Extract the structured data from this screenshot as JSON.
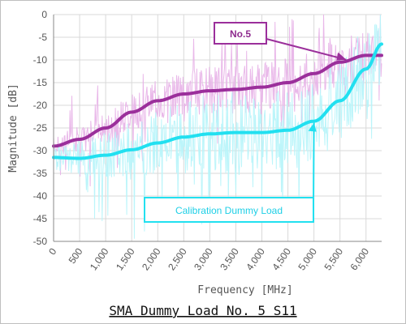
{
  "chart_data": {
    "type": "line",
    "title": "SMA Dummy Load No. 5 S11",
    "xlabel": "Frequency [MHz]",
    "ylabel": "Magnitude [dB]",
    "xlim": [
      0,
      6300
    ],
    "ylim": [
      -50,
      0
    ],
    "x_ticks": [
      "0",
      "500",
      "1,000",
      "1,500",
      "2,000",
      "2,500",
      "3,000",
      "3,500",
      "4,000",
      "4,500",
      "5,000",
      "5,500",
      "6,000"
    ],
    "y_ticks": [
      "0",
      "-5",
      "-10",
      "-15",
      "-20",
      "-25",
      "-30",
      "-35",
      "-40",
      "-45",
      "-50"
    ],
    "grid": true,
    "legend": "none",
    "series": [
      {
        "name": "No.5",
        "color": "#9b2f9b",
        "raw_color": "#e8b4e8",
        "x": [
          0,
          500,
          1000,
          1500,
          2000,
          2500,
          3000,
          3500,
          4000,
          4500,
          5000,
          5500,
          6000,
          6300
        ],
        "values": [
          -29,
          -27.5,
          -25,
          -21.5,
          -19,
          -17.5,
          -16.8,
          -16.5,
          -16,
          -15,
          -13,
          -10.5,
          -9,
          -9
        ]
      },
      {
        "name": "Calibration Dummy Load",
        "color": "#22e0f0",
        "raw_color": "#b8f4fa",
        "x": [
          0,
          500,
          1000,
          1500,
          2000,
          2500,
          3000,
          3500,
          4000,
          4500,
          5000,
          5500,
          6000,
          6300
        ],
        "values": [
          -31.5,
          -31.7,
          -31,
          -29.8,
          -28.3,
          -27,
          -26.3,
          -26,
          -26,
          -25.5,
          -23.5,
          -19,
          -12,
          -6.5
        ]
      }
    ],
    "annotations": [
      {
        "text": "No.5",
        "series": 0,
        "points_to_x": 5900
      },
      {
        "text": "Calibration Dummy Load",
        "series": 1,
        "points_to_x": 5900
      }
    ]
  },
  "colors": {
    "plot_bg": "#ffffff",
    "grid": "#d9d9d9",
    "axis": "#888888"
  }
}
